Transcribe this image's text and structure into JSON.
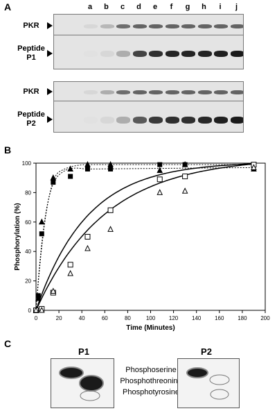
{
  "panel_labels": {
    "a": "A",
    "b": "B",
    "c": "C"
  },
  "lanes": [
    "a",
    "b",
    "c",
    "d",
    "e",
    "f",
    "g",
    "h",
    "i",
    "j"
  ],
  "gel_rows": [
    {
      "label": "PKR",
      "band_intensity": [
        0.05,
        0.2,
        0.55,
        0.6,
        0.6,
        0.6,
        0.6,
        0.6,
        0.6,
        0.6
      ]
    },
    {
      "label": "Peptide P1",
      "band_intensity": [
        0.0,
        0.05,
        0.25,
        0.75,
        0.85,
        0.9,
        0.9,
        0.9,
        0.92,
        0.95
      ]
    },
    {
      "label": "PKR",
      "band_intensity": [
        0.05,
        0.25,
        0.55,
        0.6,
        0.6,
        0.6,
        0.6,
        0.6,
        0.6,
        0.6
      ]
    },
    {
      "label": "Peptide P2",
      "band_intensity": [
        0.0,
        0.05,
        0.25,
        0.65,
        0.8,
        0.85,
        0.85,
        0.88,
        0.92,
        0.95
      ]
    }
  ],
  "chart_data": {
    "type": "scatter",
    "title": "",
    "xlabel": "Time (Minutes)",
    "ylabel": "Phosphorylation (%)",
    "xlim": [
      0,
      200
    ],
    "ylim": [
      0,
      100
    ],
    "x_ticks": [
      0,
      20,
      40,
      60,
      80,
      100,
      120,
      140,
      160,
      180,
      200
    ],
    "y_ticks": [
      0,
      20,
      40,
      60,
      80,
      100
    ],
    "grid": false,
    "series": [
      {
        "marker": "filled-square",
        "line": "dotted",
        "x": [
          0,
          2,
          5,
          15,
          30,
          45,
          65,
          108,
          130,
          190
        ],
        "y": [
          0,
          10,
          52,
          87,
          91,
          96,
          96,
          99,
          99,
          99
        ]
      },
      {
        "marker": "filled-triangle",
        "line": "dotted",
        "x": [
          0,
          2,
          5,
          15,
          30,
          45,
          65,
          108,
          130,
          190
        ],
        "y": [
          0,
          8,
          60,
          90,
          96,
          99,
          99,
          95,
          99,
          96
        ]
      },
      {
        "marker": "open-square",
        "line": "solid",
        "x": [
          0,
          5,
          15,
          30,
          45,
          65,
          108,
          130,
          190
        ],
        "y": [
          0,
          1,
          12,
          31,
          50,
          68,
          89,
          91,
          99
        ]
      },
      {
        "marker": "open-triangle",
        "line": "solid",
        "x": [
          0,
          5,
          15,
          30,
          45,
          65,
          108,
          130,
          190
        ],
        "y": [
          0,
          0,
          13,
          25,
          42,
          55,
          80,
          81,
          97
        ]
      }
    ]
  },
  "tlc": {
    "left_label": "P1",
    "right_label": "P2",
    "amino_acids": [
      "Phosphoserine",
      "Phosphothreonine",
      "Phosphotyrosine"
    ]
  }
}
